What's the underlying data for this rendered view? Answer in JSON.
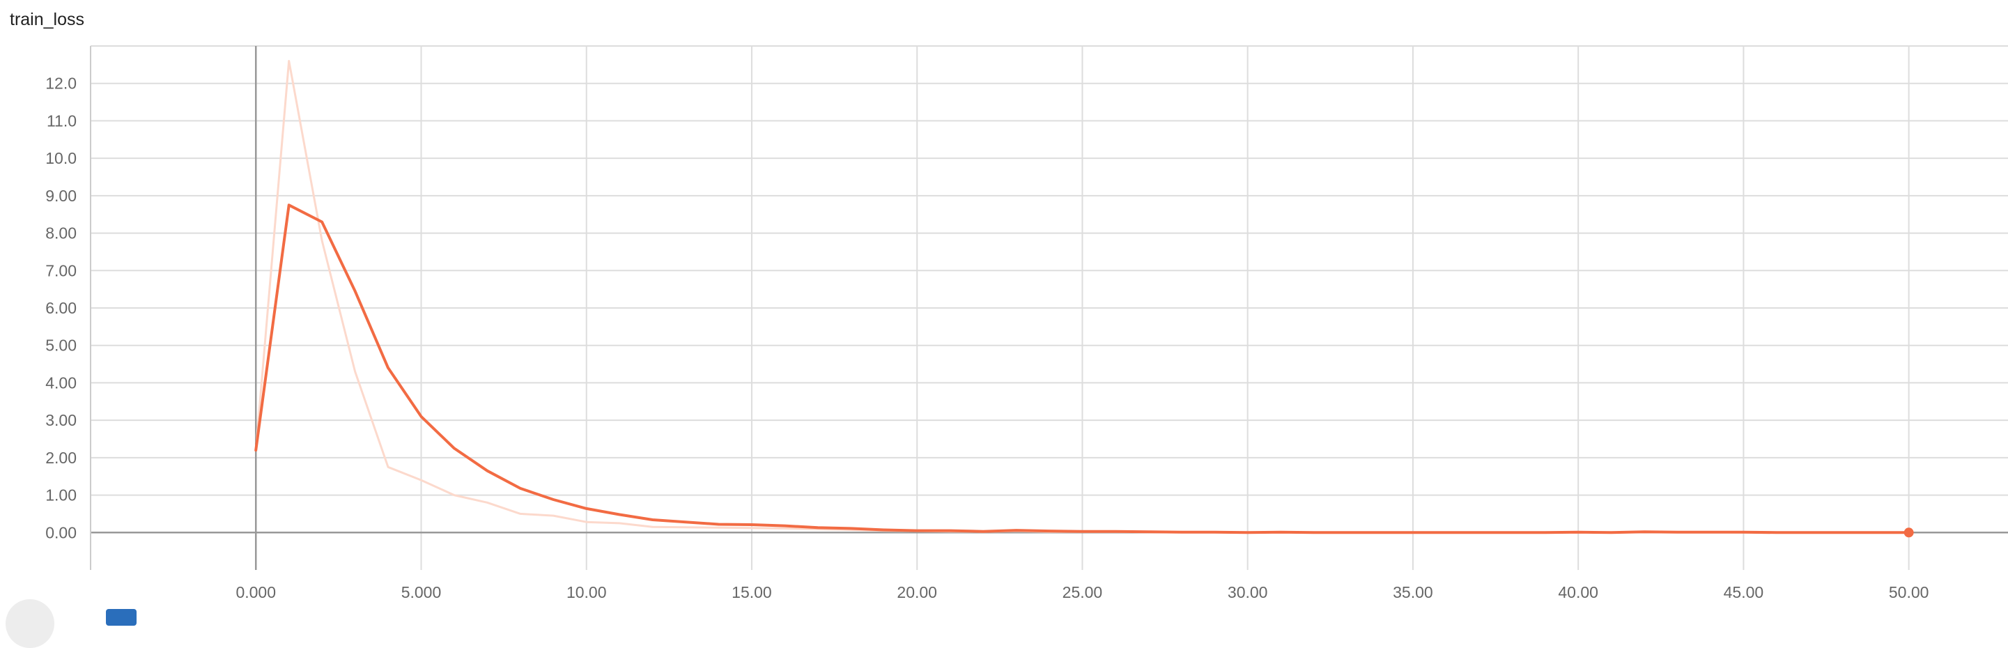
{
  "chart_data": {
    "type": "line",
    "title": "train_loss",
    "xlabel": "",
    "ylabel": "",
    "xlim": [
      -5.0,
      53.0
    ],
    "ylim": [
      -1.0,
      13.0
    ],
    "x_ticks": [
      0,
      5,
      10,
      15,
      20,
      25,
      30,
      35,
      40,
      45,
      50
    ],
    "x_tick_labels": [
      "0.000",
      "5.000",
      "10.00",
      "15.00",
      "20.00",
      "25.00",
      "30.00",
      "35.00",
      "40.00",
      "45.00",
      "50.00"
    ],
    "y_ticks": [
      0,
      1,
      2,
      3,
      4,
      5,
      6,
      7,
      8,
      9,
      10,
      11,
      12
    ],
    "y_tick_labels": [
      "0.00",
      "1.00",
      "2.00",
      "3.00",
      "4.00",
      "5.00",
      "6.00",
      "7.00",
      "8.00",
      "9.00",
      "10.0",
      "11.0",
      "12.0"
    ],
    "grid": true,
    "series": [
      {
        "role": "raw",
        "color": "#fcd9cc",
        "x": [
          0,
          1,
          2,
          3,
          4,
          5,
          6,
          7,
          8,
          9,
          10,
          11,
          12,
          13,
          14,
          15,
          16,
          17,
          18,
          19,
          20,
          21,
          22,
          23,
          24,
          25,
          26,
          27,
          28,
          29,
          30,
          31,
          32,
          33,
          34,
          35,
          36,
          37,
          38,
          39,
          40,
          41,
          42,
          43,
          44,
          45,
          46,
          47,
          48,
          49,
          50
        ],
        "values": [
          2.2,
          12.6,
          7.8,
          4.3,
          1.75,
          1.4,
          1.0,
          0.8,
          0.5,
          0.45,
          0.28,
          0.25,
          0.15,
          0.14,
          0.13,
          0.12,
          0.11,
          0.09,
          0.07,
          0.05,
          0.04,
          0.03,
          0.02,
          0.04,
          0.02,
          0.02,
          0.02,
          0.01,
          0.01,
          0.01,
          0.0,
          0.01,
          0.0,
          0.0,
          0.0,
          0.0,
          0.0,
          0.0,
          0.0,
          0.0,
          0.01,
          0.0,
          0.01,
          0.01,
          0.01,
          0.0,
          0.0,
          0.0,
          0.0,
          0.0,
          0.0
        ]
      },
      {
        "role": "smoothed",
        "color": "#f26b43",
        "x": [
          0,
          1,
          2,
          3,
          4,
          5,
          6,
          7,
          8,
          9,
          10,
          11,
          12,
          13,
          14,
          15,
          16,
          17,
          18,
          19,
          20,
          21,
          22,
          23,
          24,
          25,
          26,
          27,
          28,
          29,
          30,
          31,
          32,
          33,
          34,
          35,
          36,
          37,
          38,
          39,
          40,
          41,
          42,
          43,
          44,
          45,
          46,
          47,
          48,
          49,
          50
        ],
        "values": [
          2.2,
          8.75,
          8.3,
          6.45,
          4.4,
          3.1,
          2.25,
          1.65,
          1.18,
          0.88,
          0.64,
          0.48,
          0.34,
          0.28,
          0.22,
          0.21,
          0.18,
          0.13,
          0.11,
          0.07,
          0.05,
          0.05,
          0.03,
          0.06,
          0.04,
          0.03,
          0.03,
          0.02,
          0.01,
          0.01,
          0.0,
          0.01,
          0.0,
          0.0,
          0.0,
          0.0,
          0.0,
          0.0,
          0.0,
          0.0,
          0.01,
          0.0,
          0.02,
          0.01,
          0.01,
          0.01,
          0.0,
          0.0,
          0.0,
          0.0,
          0.0
        ]
      }
    ],
    "last_point": {
      "x": 50,
      "y": 0.0
    }
  },
  "colors": {
    "grid": "#dddddd",
    "zero_axis": "#999999",
    "raw_line": "#fcd9cc",
    "smoothed_line": "#f26b43"
  },
  "footer": {
    "left_icon": "circle-icon",
    "right_icon": "square-icon"
  }
}
